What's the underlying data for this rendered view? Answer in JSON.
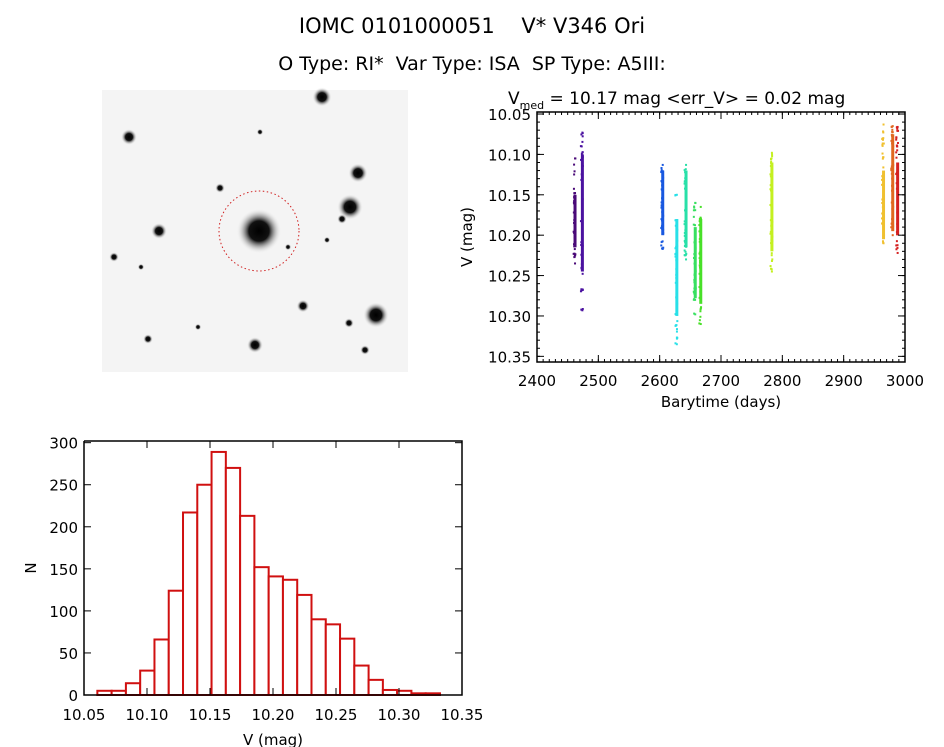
{
  "header": {
    "title": "IOMC 0101000051    V* V346 Ori",
    "subtitle": "O Type: RI*  Var Type: ISA  SP Type: A5III:"
  },
  "chart_data": [
    {
      "type": "image",
      "name": "finding-chart",
      "description_marker": "circle around target star"
    },
    {
      "type": "scatter",
      "name": "light-curve",
      "title_prefix": "V",
      "title_sub": "med",
      "title_rest": " = 10.17 mag <err_V> = 0.02 mag",
      "xlabel": "Barytime (days)",
      "ylabel": "V (mag)",
      "xlim": [
        2400,
        3000
      ],
      "ylim": [
        10.357,
        10.0475
      ],
      "xticks": [
        "2400",
        "2500",
        "2600",
        "2700",
        "2800",
        "2900",
        "3000"
      ],
      "yticks": [
        "10.05",
        "10.10",
        "10.15",
        "10.20",
        "10.25",
        "10.30",
        "10.35"
      ],
      "groups": [
        {
          "x": 2462,
          "vmin": 10.105,
          "vmax": 10.235,
          "core": [
            10.15,
            10.215
          ],
          "color": "#4a0a78"
        },
        {
          "x": 2474,
          "vmin": 10.073,
          "vmax": 10.293,
          "core": [
            10.1,
            10.245
          ],
          "color": "#4b12a0"
        },
        {
          "x": 2605,
          "vmin": 10.113,
          "vmax": 10.217,
          "core": [
            10.12,
            10.2
          ],
          "color": "#1858e0"
        },
        {
          "x": 2628,
          "vmin": 10.15,
          "vmax": 10.335,
          "core": [
            10.18,
            10.3
          ],
          "color": "#28e0e8"
        },
        {
          "x": 2643,
          "vmin": 10.113,
          "vmax": 10.23,
          "core": [
            10.12,
            10.215
          ],
          "color": "#28e0a8"
        },
        {
          "x": 2658,
          "vmin": 10.16,
          "vmax": 10.298,
          "core": [
            10.19,
            10.278
          ],
          "color": "#38e060"
        },
        {
          "x": 2667,
          "vmin": 10.165,
          "vmax": 10.31,
          "core": [
            10.18,
            10.285
          ],
          "color": "#48e028"
        },
        {
          "x": 2783,
          "vmin": 10.098,
          "vmax": 10.245,
          "core": [
            10.11,
            10.22
          ],
          "color": "#c4f020"
        },
        {
          "x": 2965,
          "vmin": 10.063,
          "vmax": 10.21,
          "core": [
            10.12,
            10.205
          ],
          "color": "#f0c030"
        },
        {
          "x": 2980,
          "vmin": 10.065,
          "vmax": 10.2,
          "core": [
            10.075,
            10.195
          ],
          "color": "#e06820"
        },
        {
          "x": 2988,
          "vmin": 10.066,
          "vmax": 10.222,
          "core": [
            10.11,
            10.2
          ],
          "color": "#d42020"
        }
      ]
    },
    {
      "type": "bar",
      "name": "histogram",
      "xlabel": "V (mag)",
      "ylabel": "N",
      "xlim": [
        10.05,
        10.35
      ],
      "ylim": [
        0,
        302
      ],
      "xticks": [
        "10.05",
        "10.10",
        "10.15",
        "10.20",
        "10.25",
        "10.30",
        "10.35"
      ],
      "yticks": [
        "0",
        "50",
        "100",
        "150",
        "200",
        "250",
        "300"
      ],
      "bin_start": 10.0606,
      "bin_width": 0.01133,
      "counts": [
        5,
        5,
        14,
        29,
        66,
        124,
        217,
        250,
        289,
        270,
        213,
        152,
        141,
        137,
        119,
        90,
        84,
        67,
        35,
        18,
        6,
        5,
        2,
        2
      ],
      "color": "#d01010"
    }
  ]
}
